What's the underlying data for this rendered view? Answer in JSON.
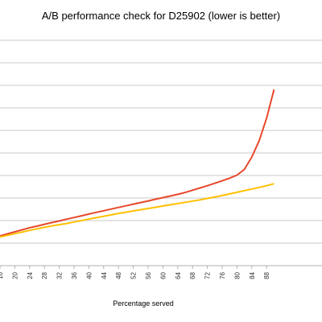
{
  "chart_data": {
    "type": "line",
    "title": "A/B performance check for D25902 (lower is better)",
    "xlabel": "Percentage served",
    "ylabel": "",
    "x": [
      16,
      18,
      20,
      22,
      24,
      26,
      28,
      30,
      32,
      34,
      36,
      38,
      40,
      42,
      44,
      46,
      48,
      50,
      52,
      54,
      56,
      58,
      60,
      62,
      64,
      66,
      68,
      70,
      72,
      74,
      76,
      78,
      80,
      82,
      84,
      86,
      88,
      90
    ],
    "x_ticks": [
      "16",
      "20",
      "24",
      "28",
      "32",
      "36",
      "40",
      "44",
      "48",
      "52",
      "56",
      "60",
      "64",
      "68",
      "72",
      "76",
      "80",
      "84",
      "88"
    ],
    "xlim": [
      16,
      90
    ],
    "ylim": [
      0,
      11
    ],
    "grid": true,
    "series": [
      {
        "color": "#e8482c",
        "values": [
          1.45,
          1.55,
          1.65,
          1.75,
          1.85,
          1.93,
          2.02,
          2.1,
          2.18,
          2.27,
          2.35,
          2.43,
          2.52,
          2.6,
          2.68,
          2.76,
          2.84,
          2.92,
          3.0,
          3.08,
          3.16,
          3.24,
          3.32,
          3.4,
          3.48,
          3.57,
          3.68,
          3.79,
          3.9,
          4.02,
          4.14,
          4.27,
          4.42,
          4.7,
          5.3,
          6.1,
          7.2,
          8.6
        ]
      },
      {
        "color": "#ffc000",
        "values": [
          1.4,
          1.48,
          1.56,
          1.64,
          1.72,
          1.8,
          1.87,
          1.94,
          2.0,
          2.06,
          2.13,
          2.2,
          2.27,
          2.34,
          2.41,
          2.48,
          2.55,
          2.61,
          2.67,
          2.73,
          2.79,
          2.85,
          2.91,
          2.97,
          3.03,
          3.09,
          3.15,
          3.21,
          3.28,
          3.35,
          3.42,
          3.5,
          3.58,
          3.66,
          3.74,
          3.82,
          3.9,
          4.0
        ]
      }
    ]
  }
}
